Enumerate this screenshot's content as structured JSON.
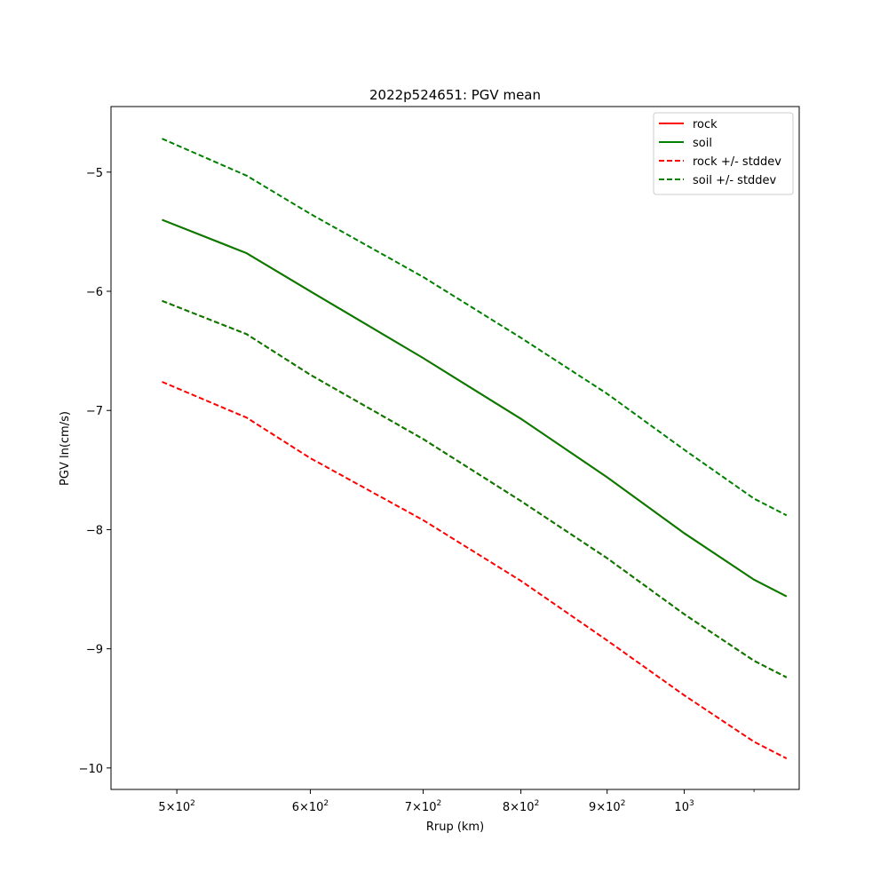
{
  "chart_data": {
    "type": "line",
    "title": "2022p524651: PGV mean",
    "xlabel": "Rrup (km)",
    "ylabel": "PGV ln(cm/s)",
    "xscale": "log",
    "xlim": [
      457,
      1170
    ],
    "ylim": [
      -10.18,
      -4.45
    ],
    "x_ticks": [
      {
        "value": 500,
        "mantissa": "5",
        "base": "10",
        "exp": "2"
      },
      {
        "value": 600,
        "mantissa": "6",
        "base": "10",
        "exp": "2"
      },
      {
        "value": 700,
        "mantissa": "7",
        "base": "10",
        "exp": "2"
      },
      {
        "value": 800,
        "mantissa": "8",
        "base": "10",
        "exp": "2"
      },
      {
        "value": 900,
        "mantissa": "9",
        "base": "10",
        "exp": "2"
      },
      {
        "value": 1000,
        "mantissa": "",
        "base": "10",
        "exp": "3"
      }
    ],
    "y_ticks": [
      {
        "value": -5,
        "label": "−5"
      },
      {
        "value": -6,
        "label": "−6"
      },
      {
        "value": -7,
        "label": "−7"
      },
      {
        "value": -8,
        "label": "−8"
      },
      {
        "value": -9,
        "label": "−9"
      },
      {
        "value": -10,
        "label": "−10"
      }
    ],
    "grid": false,
    "legend_position": "top-right",
    "colors": {
      "rock": "#ff0000",
      "soil": "#008000"
    },
    "series": [
      {
        "name": "rock",
        "color": "#ff0000",
        "style": "solid",
        "x": [
          490,
          550,
          600,
          700,
          800,
          900,
          1000,
          1100,
          1150
        ],
        "y": [
          -5.4,
          -5.68,
          -6.0,
          -6.56,
          -7.07,
          -7.56,
          -8.03,
          -8.42,
          -8.56
        ]
      },
      {
        "name": "soil",
        "color": "#008000",
        "style": "solid",
        "x": [
          490,
          550,
          600,
          700,
          800,
          900,
          1000,
          1100,
          1150
        ],
        "y": [
          -5.4,
          -5.68,
          -6.0,
          -6.56,
          -7.07,
          -7.56,
          -8.03,
          -8.42,
          -8.56
        ]
      },
      {
        "name": "rock +/- stddev",
        "color": "#ff0000",
        "style": "dashed",
        "x": [
          490,
          550,
          600,
          700,
          800,
          900,
          1000,
          1100,
          1150
        ],
        "y": [
          -6.08,
          -6.36,
          -6.7,
          -7.24,
          -7.76,
          -8.24,
          -8.71,
          -9.1,
          -9.24
        ]
      },
      {
        "name": "soil +/- stddev",
        "color": "#008000",
        "style": "dashed",
        "x": [
          490,
          550,
          600,
          700,
          800,
          900,
          1000,
          1100,
          1150
        ],
        "y": [
          -6.08,
          -6.36,
          -6.7,
          -7.24,
          -7.76,
          -8.24,
          -8.71,
          -9.1,
          -9.24
        ]
      },
      {
        "name": "rock +/- stddev lower",
        "legend": false,
        "color": "#ff0000",
        "style": "dashed",
        "x": [
          490,
          550,
          600,
          700,
          800,
          900,
          1000,
          1100,
          1150
        ],
        "y": [
          -6.76,
          -7.06,
          -7.4,
          -7.92,
          -8.43,
          -8.93,
          -9.39,
          -9.78,
          -9.92
        ]
      },
      {
        "name": "soil +/- stddev upper",
        "legend": false,
        "color": "#008000",
        "style": "dashed",
        "x": [
          490,
          550,
          600,
          700,
          800,
          900,
          1000,
          1100,
          1150
        ],
        "y": [
          -4.72,
          -5.03,
          -5.35,
          -5.88,
          -6.39,
          -6.86,
          -7.33,
          -7.74,
          -7.88
        ]
      }
    ],
    "legend": [
      {
        "label": "rock",
        "color": "#ff0000",
        "style": "solid"
      },
      {
        "label": "soil",
        "color": "#008000",
        "style": "solid"
      },
      {
        "label": "rock +/- stddev",
        "color": "#ff0000",
        "style": "dashed"
      },
      {
        "label": "soil +/- stddev",
        "color": "#008000",
        "style": "dashed"
      }
    ]
  }
}
